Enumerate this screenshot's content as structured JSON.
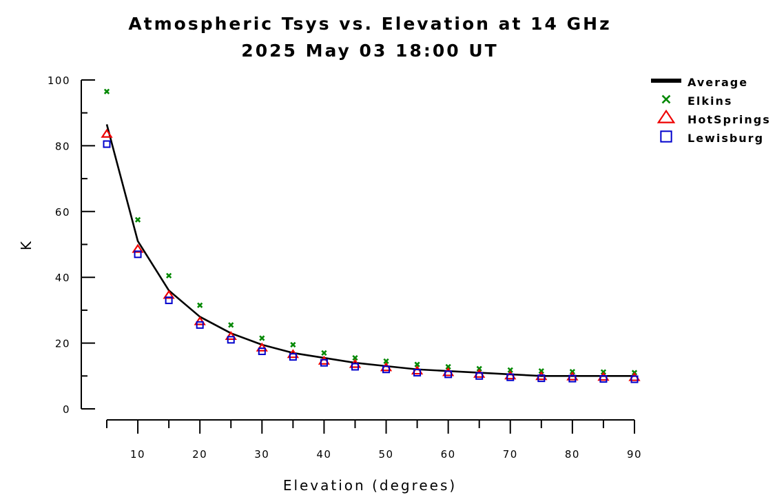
{
  "chart_data": {
    "type": "line",
    "title": "Atmospheric Tsys vs. Elevation at 14 GHz",
    "subtitle": "2025 May 03 18:00 UT",
    "xlabel": "Elevation (degrees)",
    "ylabel": "K",
    "xlim": [
      5,
      90
    ],
    "ylim": [
      0,
      100
    ],
    "x_ticks": [
      10,
      20,
      30,
      40,
      50,
      60,
      70,
      80,
      90
    ],
    "y_ticks": [
      0,
      20,
      40,
      60,
      80,
      100
    ],
    "grid": false,
    "legend_position": "top-right",
    "x": [
      5,
      10,
      15,
      20,
      25,
      30,
      35,
      40,
      45,
      50,
      55,
      60,
      65,
      70,
      75,
      80,
      85,
      90
    ],
    "series": [
      {
        "name": "Average",
        "style": "line",
        "color": "#000000",
        "values": [
          86.5,
          51,
          36,
          28,
          23,
          19.5,
          17,
          15.5,
          14,
          13,
          12,
          11.5,
          11,
          10.5,
          10,
          10,
          10,
          10
        ]
      },
      {
        "name": "Elkins",
        "style": "x-marker",
        "color": "#008800",
        "values": [
          96.5,
          57.5,
          40.5,
          31.5,
          25.5,
          21.5,
          19.5,
          17,
          15.5,
          14.5,
          13.5,
          12.8,
          12.2,
          11.8,
          11.5,
          11.3,
          11.2,
          11
        ]
      },
      {
        "name": "HotSprings",
        "style": "triangle-marker",
        "color": "#ee0000",
        "values": [
          83.5,
          48.5,
          34.5,
          26.5,
          22,
          18.5,
          16.5,
          14.5,
          13.5,
          12.5,
          11.5,
          11,
          10.5,
          10,
          9.8,
          9.7,
          9.6,
          9.5
        ]
      },
      {
        "name": "Lewisburg",
        "style": "square-marker",
        "color": "#0000cc",
        "values": [
          80.5,
          47,
          33,
          25.5,
          21,
          17.5,
          15.8,
          14,
          12.8,
          12,
          11,
          10.5,
          10,
          9.6,
          9.3,
          9.2,
          9.1,
          9
        ]
      }
    ]
  }
}
